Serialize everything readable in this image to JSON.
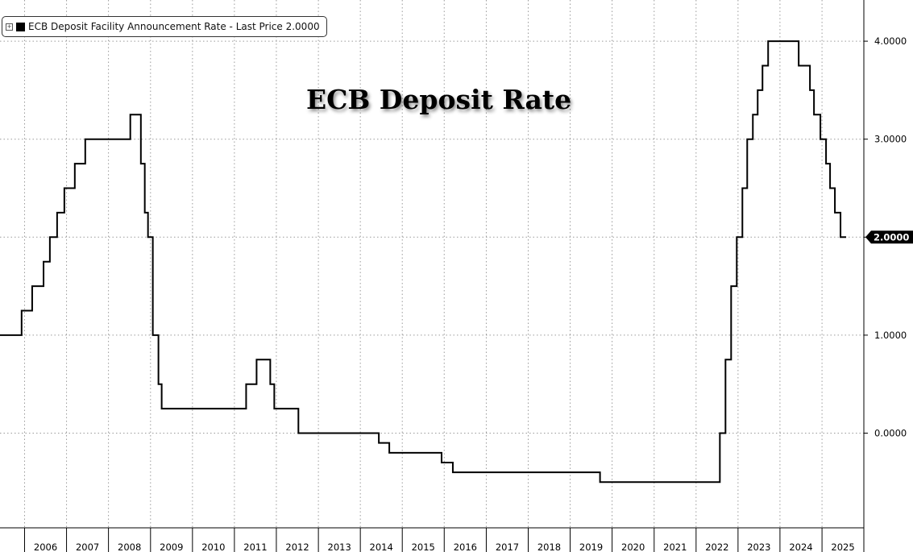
{
  "legend": {
    "expand_icon": "plus-square-icon",
    "label": "ECB Deposit Facility Announcement Rate - Last Price 2.0000"
  },
  "chart_data": {
    "type": "line",
    "title": "ECB Deposit Rate",
    "xlabel": "",
    "ylabel": "",
    "x_range": [
      "2005-06-01",
      "2025-12-31"
    ],
    "ylim": [
      -1.0,
      4.4
    ],
    "y_ticks": [
      0.0,
      1.0,
      2.0,
      3.0,
      4.0
    ],
    "y_tick_labels": [
      "0.0000",
      "1.0000",
      "2.0000",
      "3.0000",
      "4.0000"
    ],
    "x_tick_labels": [
      "2006",
      "2007",
      "2008",
      "2009",
      "2010",
      "2011",
      "2012",
      "2013",
      "2014",
      "2015",
      "2016",
      "2017",
      "2018",
      "2019",
      "2020",
      "2021",
      "2022",
      "2023",
      "2024",
      "2025"
    ],
    "grid": true,
    "line_color": "#000000",
    "last_value_label": "2.0000",
    "series": [
      {
        "name": "ECB Deposit Facility Announcement Rate",
        "step": true,
        "points": [
          [
            "2005-06-01",
            1.0
          ],
          [
            "2005-12-06",
            1.25
          ],
          [
            "2006-03-08",
            1.5
          ],
          [
            "2006-06-15",
            1.75
          ],
          [
            "2006-08-09",
            2.0
          ],
          [
            "2006-10-11",
            2.25
          ],
          [
            "2006-12-13",
            2.5
          ],
          [
            "2007-03-14",
            2.75
          ],
          [
            "2007-06-13",
            3.0
          ],
          [
            "2008-07-09",
            3.25
          ],
          [
            "2008-10-09",
            2.75
          ],
          [
            "2008-11-12",
            2.25
          ],
          [
            "2008-12-10",
            2.0
          ],
          [
            "2009-01-21",
            1.0
          ],
          [
            "2009-03-11",
            0.5
          ],
          [
            "2009-04-08",
            0.25
          ],
          [
            "2011-04-13",
            0.5
          ],
          [
            "2011-07-13",
            0.75
          ],
          [
            "2011-11-09",
            0.5
          ],
          [
            "2011-12-14",
            0.25
          ],
          [
            "2012-07-11",
            0.0
          ],
          [
            "2014-06-11",
            -0.1
          ],
          [
            "2014-09-10",
            -0.2
          ],
          [
            "2015-12-09",
            -0.3
          ],
          [
            "2016-03-16",
            -0.4
          ],
          [
            "2019-09-18",
            -0.5
          ],
          [
            "2022-07-27",
            0.0
          ],
          [
            "2022-09-14",
            0.75
          ],
          [
            "2022-11-02",
            1.5
          ],
          [
            "2022-12-21",
            2.0
          ],
          [
            "2023-02-08",
            2.5
          ],
          [
            "2023-03-22",
            3.0
          ],
          [
            "2023-05-10",
            3.25
          ],
          [
            "2023-06-21",
            3.5
          ],
          [
            "2023-08-02",
            3.75
          ],
          [
            "2023-09-20",
            4.0
          ],
          [
            "2024-06-12",
            3.75
          ],
          [
            "2024-09-18",
            3.5
          ],
          [
            "2024-10-23",
            3.25
          ],
          [
            "2024-12-18",
            3.0
          ],
          [
            "2025-02-05",
            2.75
          ],
          [
            "2025-03-12",
            2.5
          ],
          [
            "2025-04-23",
            2.25
          ],
          [
            "2025-06-11",
            2.0
          ],
          [
            "2025-07-30",
            2.0
          ]
        ]
      }
    ]
  }
}
